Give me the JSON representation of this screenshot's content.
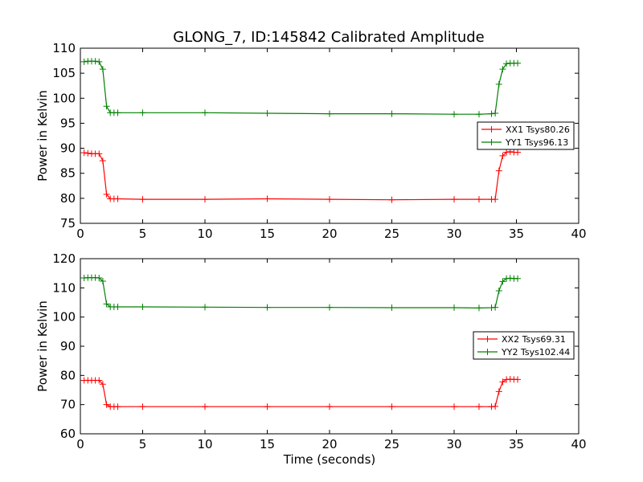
{
  "chart_data": [
    {
      "type": "line",
      "title": "GLONG_7, ID:145842 Calibrated Amplitude",
      "xlabel": "",
      "ylabel": "Power in Kelvin",
      "xlim": [
        0,
        40
      ],
      "ylim": [
        75,
        110
      ],
      "xticks": [
        "0",
        "5",
        "10",
        "15",
        "20",
        "25",
        "30",
        "35",
        "40"
      ],
      "yticks": [
        "75",
        "80",
        "85",
        "90",
        "95",
        "100",
        "105",
        "110"
      ],
      "grid": false,
      "legend_position": "right",
      "x": [
        0.3,
        0.6,
        0.9,
        1.2,
        1.5,
        1.8,
        2.1,
        2.4,
        2.7,
        3.0,
        5.0,
        10.0,
        15.0,
        20.0,
        25.0,
        30.0,
        32.0,
        33.0,
        33.3,
        33.6,
        33.9,
        34.2,
        34.5,
        34.8,
        35.1
      ],
      "series": [
        {
          "name": "XX1 Tsys80.26",
          "color": "#ff0000",
          "values": [
            89.1,
            89.0,
            88.9,
            88.9,
            88.9,
            87.5,
            80.8,
            79.9,
            79.9,
            79.9,
            79.8,
            79.8,
            79.9,
            79.8,
            79.7,
            79.8,
            79.8,
            79.8,
            79.8,
            85.5,
            88.5,
            89.2,
            89.3,
            89.2,
            89.2
          ]
        },
        {
          "name": "YY1 Tsys96.13",
          "color": "#008000",
          "values": [
            107.3,
            107.4,
            107.4,
            107.4,
            107.3,
            105.8,
            98.4,
            97.1,
            97.1,
            97.1,
            97.1,
            97.1,
            97.0,
            96.9,
            96.9,
            96.8,
            96.8,
            96.9,
            97.0,
            102.8,
            105.8,
            106.9,
            107.0,
            107.0,
            107.0
          ]
        }
      ]
    },
    {
      "type": "line",
      "title": "",
      "xlabel": "Time (seconds)",
      "ylabel": "Power in Kelvin",
      "xlim": [
        0,
        40
      ],
      "ylim": [
        60,
        120
      ],
      "xticks": [
        "0",
        "5",
        "10",
        "15",
        "20",
        "25",
        "30",
        "35",
        "40"
      ],
      "yticks": [
        "60",
        "70",
        "80",
        "90",
        "100",
        "110",
        "120"
      ],
      "grid": false,
      "legend_position": "right",
      "x": [
        0.3,
        0.6,
        0.9,
        1.2,
        1.5,
        1.8,
        2.1,
        2.4,
        2.7,
        3.0,
        5.0,
        10.0,
        15.0,
        20.0,
        25.0,
        30.0,
        32.0,
        33.0,
        33.3,
        33.6,
        33.9,
        34.2,
        34.5,
        34.8,
        35.1
      ],
      "series": [
        {
          "name": "XX2 Tsys69.31",
          "color": "#ff0000",
          "values": [
            78.3,
            78.3,
            78.3,
            78.3,
            78.3,
            77.0,
            70.0,
            69.3,
            69.3,
            69.3,
            69.3,
            69.3,
            69.3,
            69.3,
            69.3,
            69.3,
            69.3,
            69.3,
            69.4,
            74.5,
            77.8,
            78.6,
            78.7,
            78.6,
            78.6
          ]
        },
        {
          "name": "YY2 Tsys102.44",
          "color": "#008000",
          "values": [
            113.4,
            113.5,
            113.5,
            113.5,
            113.4,
            112.3,
            104.5,
            103.5,
            103.5,
            103.5,
            103.5,
            103.4,
            103.3,
            103.3,
            103.2,
            103.2,
            103.1,
            103.2,
            103.3,
            109.0,
            112.2,
            113.2,
            113.3,
            113.2,
            113.2
          ]
        }
      ]
    }
  ]
}
